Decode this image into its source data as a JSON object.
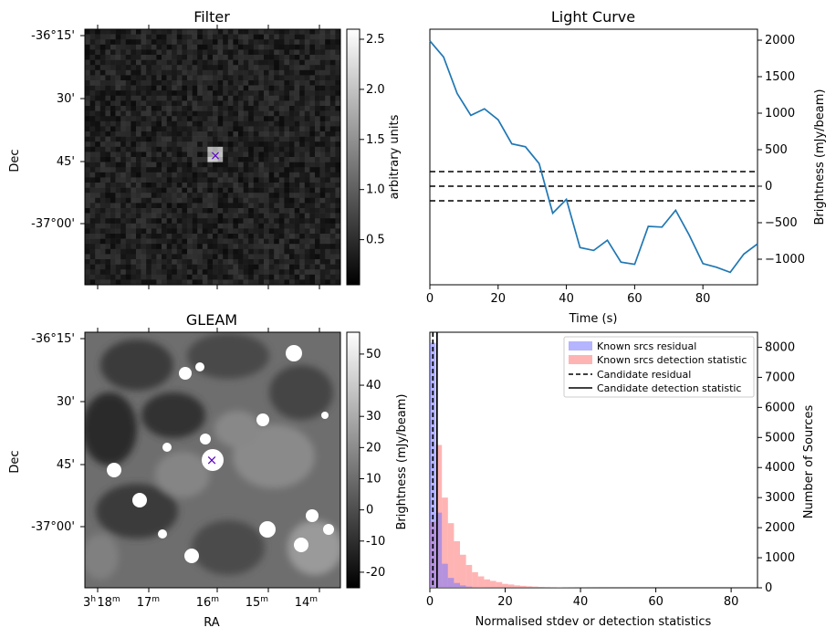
{
  "chart_data": [
    {
      "type": "heatmap",
      "title": "Filter",
      "ylabel": "Dec",
      "yticks": [
        "-36°15'",
        "30'",
        "45'",
        "-37°00'"
      ],
      "colorbar": {
        "label": "arbitrary units",
        "range": [
          0.05,
          2.6
        ],
        "ticks": [
          0.5,
          1.0,
          1.5,
          2.0,
          2.5
        ]
      },
      "marker": "×"
    },
    {
      "type": "line",
      "title": "Light Curve",
      "xlabel": "Time (s)",
      "ylabel": "Brightness (mJy/beam)",
      "xlim": [
        0,
        96
      ],
      "ylim": [
        -1350,
        2150
      ],
      "xticks": [
        0,
        20,
        40,
        60,
        80
      ],
      "yticks": [
        -1000,
        -500,
        0,
        500,
        1000,
        1500,
        2000
      ],
      "x": [
        0,
        4,
        8,
        12,
        16,
        20,
        24,
        28,
        32,
        36,
        40,
        44,
        48,
        52,
        56,
        60,
        64,
        68,
        72,
        76,
        80,
        84,
        88,
        92,
        96
      ],
      "y": [
        1990,
        1770,
        1270,
        970,
        1060,
        910,
        580,
        540,
        310,
        -370,
        -180,
        -840,
        -880,
        -740,
        -1040,
        -1070,
        -550,
        -560,
        -330,
        -670,
        -1060,
        -1110,
        -1180,
        -930,
        -790
      ],
      "hlines": [
        200,
        0,
        -200
      ]
    },
    {
      "type": "heatmap",
      "title": "GLEAM",
      "xlabel": "RA",
      "ylabel": "Dec",
      "yticks": [
        "-36°15'",
        "30'",
        "45'",
        "-37°00'"
      ],
      "xticks": [
        "3h18m",
        "17m",
        "16m",
        "15m",
        "14m"
      ],
      "colorbar": {
        "label": "Brightness (mJy/beam)",
        "range": [
          -25,
          57
        ],
        "ticks": [
          -20,
          -10,
          0,
          10,
          20,
          30,
          40,
          50
        ]
      },
      "marker": "×"
    },
    {
      "type": "bar",
      "xlabel": "Normalised stdev or detection statistics",
      "ylabel": "Number of Sources",
      "xlim": [
        0,
        87
      ],
      "ylim": [
        0,
        8500
      ],
      "xticks": [
        0,
        20,
        40,
        60,
        80
      ],
      "yticks": [
        0,
        1000,
        2000,
        3000,
        4000,
        5000,
        6000,
        7000,
        8000
      ],
      "bin_width": 1.6,
      "series": [
        {
          "name": "Known srcs residual",
          "color": "#7777ff",
          "values": [
            8150,
            2500,
            800,
            330,
            160,
            80,
            40,
            20,
            10,
            5,
            3,
            2
          ]
        },
        {
          "name": "Known srcs detection statistic",
          "color": "#ff7777",
          "values": [
            2200,
            4750,
            3000,
            2150,
            1550,
            1100,
            760,
            520,
            380,
            280,
            230,
            190,
            130,
            110,
            80,
            65,
            50,
            40,
            30,
            25,
            20,
            15,
            12,
            10,
            8,
            6,
            5,
            4,
            3,
            3,
            2,
            2,
            2,
            1,
            1,
            1,
            1
          ]
        }
      ],
      "vlines": [
        {
          "name": "Candidate residual",
          "x": 0.8,
          "style": "dashed"
        },
        {
          "name": "Candidate detection statistic",
          "x": 1.9,
          "style": "solid"
        }
      ]
    }
  ]
}
